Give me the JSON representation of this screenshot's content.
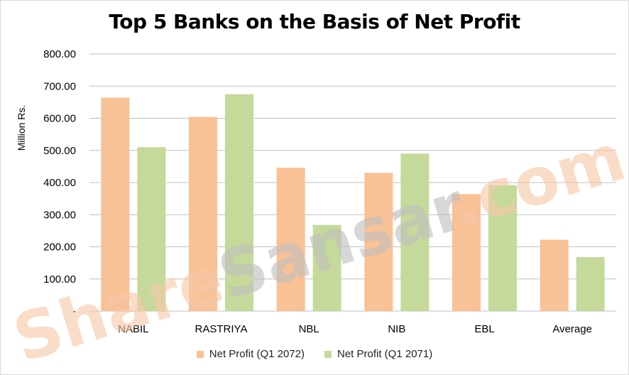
{
  "chart_data": {
    "type": "bar",
    "title": "Top 5 Banks on the Basis of Net Profit",
    "ylabel": "Million Rs.",
    "xlabel": "",
    "categories": [
      "NABIL",
      "RASTRIYA",
      "NBL",
      "NIB",
      "EBL",
      "Average"
    ],
    "series": [
      {
        "name": "Net Profit (Q1 2072)",
        "color": "#f8c196",
        "values": [
          664,
          604,
          446,
          430,
          364,
          222
        ]
      },
      {
        "name": "Net Profit (Q1 2071)",
        "color": "#c5d99b",
        "values": [
          510,
          675,
          268,
          490,
          392,
          168
        ]
      }
    ],
    "ylim": [
      0,
      800
    ],
    "yticks": [
      0,
      100,
      200,
      300,
      400,
      500,
      600,
      700,
      800
    ],
    "ytick_labels": [
      "-",
      "100.00",
      "200.00",
      "300.00",
      "400.00",
      "500.00",
      "600.00",
      "700.00",
      "800.00"
    ],
    "grid": true,
    "legend_position": "bottom"
  },
  "watermark": {
    "text": "ShareSansar.com",
    "color_share": "#f6c9a8",
    "color_sansar": "#c0c0c0",
    "color_com": "#f6c9a8"
  }
}
